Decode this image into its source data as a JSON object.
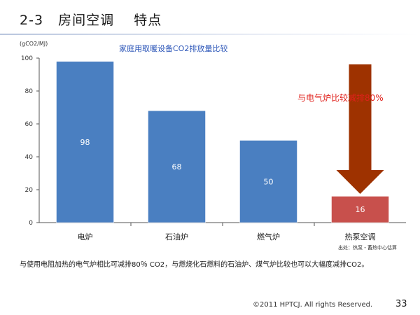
{
  "slide": {
    "title": "2-3   房间空调    特点",
    "unit_label": "(gCO2/MJ)",
    "source_note": "出处：热泵・蓄热中心估算",
    "footnote": "与使用电阻加热的电气炉相比可减排80％ CO2，与燃烧化石燃料的石油炉、煤气炉比较也可以大幅度减排CO2。",
    "copyright": "©2011 HPTCJ. All rights Reserved.",
    "page_number": "33"
  },
  "chart_data": {
    "type": "bar",
    "title": "家庭用取暖设备CO2排放量比较",
    "categories": [
      "电炉",
      "石油炉",
      "燃气炉",
      "热泵空调"
    ],
    "values": [
      98,
      68,
      50,
      16
    ],
    "ylim": [
      0,
      100
    ],
    "yticks": [
      0,
      20,
      40,
      60,
      80,
      100
    ],
    "xlabel": "",
    "ylabel": "(gCO2/MJ)",
    "grid": false,
    "bar_colors": [
      "#4a7fc1",
      "#4a7fc1",
      "#4a7fc1",
      "#c8504c"
    ],
    "annotation": {
      "text": "与电气炉比较减排80%",
      "color": "#e0201b",
      "arrow_color": "#9e3200"
    }
  }
}
